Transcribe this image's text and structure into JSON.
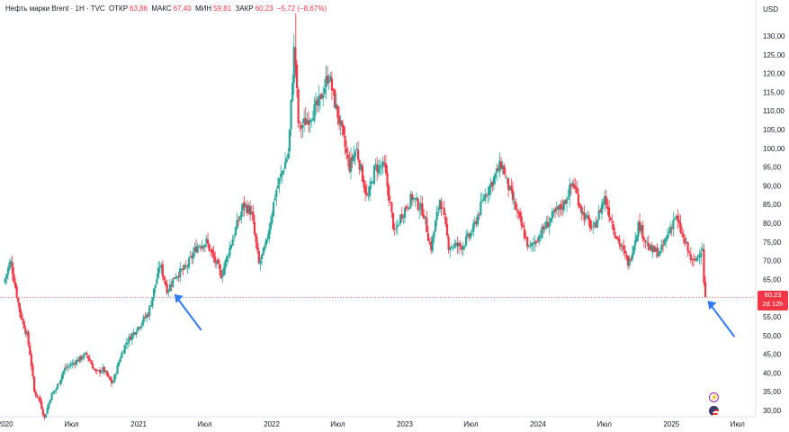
{
  "header": {
    "symbol": "Нефть марки Brent · 1H · TVC",
    "open_label": "ОТКР",
    "open_value": "63,86",
    "high_label": "МАКС",
    "high_value": "67,40",
    "low_label": "МИН",
    "low_value": "59,81",
    "close_label": "ЗАКР",
    "close_value": "60,23",
    "change_value": "−5,72 (−8,67%)"
  },
  "axis": {
    "currency": "USD",
    "price_ticks": [
      "130,00",
      "125,00",
      "120,00",
      "115,00",
      "110,00",
      "105,00",
      "100,00",
      "95,00",
      "90,00",
      "85,00",
      "80,00",
      "75,00",
      "70,00",
      "65,00",
      "60,00",
      "55,00",
      "50,00",
      "45,00",
      "40,00",
      "35,00",
      "30,00"
    ],
    "time_ticks": [
      "2020",
      "Июл",
      "2021",
      "Июл",
      "2022",
      "Июл",
      "2023",
      "Июл",
      "2024",
      "Июл",
      "2025",
      "Июл"
    ]
  },
  "price_badge": {
    "price": "60,23",
    "countdown": "2d 12h"
  },
  "colors": {
    "up": "#26a69a",
    "down": "#f23645",
    "arrow": "#3179f5"
  },
  "icons": [
    "lightning-icon",
    "us-flag-icon"
  ],
  "chart_data": {
    "type": "candlestick",
    "title": "Нефть марки Brent · 1H · TVC",
    "ylabel": "USD",
    "ylim": [
      29,
      136
    ],
    "current_price": 60.23,
    "path_points": [
      [
        "2020-01-01",
        64
      ],
      [
        "2020-01-20",
        70
      ],
      [
        "2020-02-15",
        56
      ],
      [
        "2020-03-05",
        50
      ],
      [
        "2020-03-15",
        44
      ],
      [
        "2020-03-25",
        35
      ],
      [
        "2020-04-08",
        33
      ],
      [
        "2020-04-22",
        28
      ],
      [
        "2020-05-10",
        34
      ],
      [
        "2020-05-25",
        36
      ],
      [
        "2020-06-15",
        41
      ],
      [
        "2020-07-15",
        43
      ],
      [
        "2020-08-15",
        45
      ],
      [
        "2020-09-10",
        40
      ],
      [
        "2020-09-30",
        41
      ],
      [
        "2020-10-25",
        37
      ],
      [
        "2020-11-15",
        44
      ],
      [
        "2020-12-01",
        48
      ],
      [
        "2021-01-01",
        52
      ],
      [
        "2021-02-01",
        56
      ],
      [
        "2021-03-05",
        69
      ],
      [
        "2021-03-25",
        62
      ],
      [
        "2021-04-15",
        66
      ],
      [
        "2021-05-15",
        68
      ],
      [
        "2021-06-15",
        74
      ],
      [
        "2021-07-10",
        75
      ],
      [
        "2021-08-20",
        66
      ],
      [
        "2021-09-20",
        76
      ],
      [
        "2021-10-20",
        85
      ],
      [
        "2021-11-10",
        83
      ],
      [
        "2021-12-01",
        69
      ],
      [
        "2021-12-20",
        74
      ],
      [
        "2022-01-15",
        88
      ],
      [
        "2022-02-20",
        99
      ],
      [
        "2022-03-08",
        128
      ],
      [
        "2022-03-20",
        105
      ],
      [
        "2022-04-15",
        108
      ],
      [
        "2022-05-15",
        112
      ],
      [
        "2022-06-10",
        120
      ],
      [
        "2022-06-25",
        113
      ],
      [
        "2022-07-15",
        105
      ],
      [
        "2022-08-05",
        95
      ],
      [
        "2022-08-25",
        100
      ],
      [
        "2022-09-25",
        86
      ],
      [
        "2022-10-15",
        95
      ],
      [
        "2022-11-10",
        95
      ],
      [
        "2022-12-08",
        77
      ],
      [
        "2022-12-25",
        82
      ],
      [
        "2023-01-25",
        87
      ],
      [
        "2023-02-25",
        83
      ],
      [
        "2023-03-17",
        73
      ],
      [
        "2023-04-12",
        87
      ],
      [
        "2023-05-05",
        74
      ],
      [
        "2023-06-12",
        74
      ],
      [
        "2023-07-10",
        78
      ],
      [
        "2023-08-10",
        87
      ],
      [
        "2023-09-27",
        96
      ],
      [
        "2023-10-15",
        90
      ],
      [
        "2023-11-15",
        81
      ],
      [
        "2023-12-12",
        73
      ],
      [
        "2024-01-10",
        77
      ],
      [
        "2024-02-15",
        82
      ],
      [
        "2024-03-15",
        85
      ],
      [
        "2024-04-10",
        91
      ],
      [
        "2024-05-05",
        83
      ],
      [
        "2024-06-05",
        78
      ],
      [
        "2024-07-05",
        87
      ],
      [
        "2024-08-05",
        77
      ],
      [
        "2024-09-10",
        69
      ],
      [
        "2024-10-07",
        80
      ],
      [
        "2024-11-05",
        73
      ],
      [
        "2024-12-05",
        72
      ],
      [
        "2025-01-15",
        82
      ],
      [
        "2025-02-10",
        75
      ],
      [
        "2025-03-05",
        69
      ],
      [
        "2025-04-01",
        74
      ],
      [
        "2025-04-05",
        60.23
      ]
    ],
    "annotations": [
      {
        "type": "arrow",
        "target_date": "2021-03-25",
        "target_price": 62
      },
      {
        "type": "arrow",
        "target_date": "2025-04-05",
        "target_price": 60.23
      }
    ]
  }
}
